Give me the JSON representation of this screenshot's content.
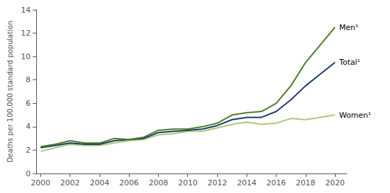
{
  "chart_data": {
    "type": "line",
    "ylabel": "Deaths per 100,000 standard population",
    "x": [
      2000,
      2001,
      2002,
      2003,
      2004,
      2005,
      2006,
      2007,
      2008,
      2009,
      2010,
      2011,
      2012,
      2013,
      2014,
      2015,
      2016,
      2017,
      2018,
      2019,
      2020
    ],
    "series": [
      {
        "name": "Men¹",
        "color": "#4f7a28",
        "values": [
          2.3,
          2.5,
          2.8,
          2.6,
          2.6,
          3.0,
          2.9,
          3.1,
          3.7,
          3.8,
          3.8,
          4.0,
          4.3,
          5.0,
          5.2,
          5.3,
          6.0,
          7.5,
          9.5,
          11.0,
          12.5
        ]
      },
      {
        "name": "Total¹",
        "color": "#1a3a6b",
        "values": [
          2.2,
          2.4,
          2.6,
          2.5,
          2.5,
          2.8,
          2.9,
          3.0,
          3.5,
          3.6,
          3.7,
          3.8,
          4.1,
          4.6,
          4.8,
          4.8,
          5.3,
          6.3,
          7.5,
          8.5,
          9.5
        ]
      },
      {
        "name": "Women¹",
        "color": "#a8c878",
        "values": [
          1.9,
          2.2,
          2.5,
          2.4,
          2.4,
          2.6,
          2.8,
          2.9,
          3.3,
          3.4,
          3.6,
          3.6,
          3.9,
          4.2,
          4.4,
          4.2,
          4.3,
          4.7,
          4.6,
          4.8,
          5.0
        ]
      }
    ],
    "xlim": [
      1999.7,
      2020.8
    ],
    "ylim": [
      0,
      14
    ],
    "xticks": [
      2000,
      2002,
      2004,
      2006,
      2008,
      2010,
      2012,
      2014,
      2016,
      2018,
      2020
    ],
    "yticks": [
      0,
      2,
      4,
      6,
      8,
      10,
      12,
      14
    ],
    "grid": false
  }
}
